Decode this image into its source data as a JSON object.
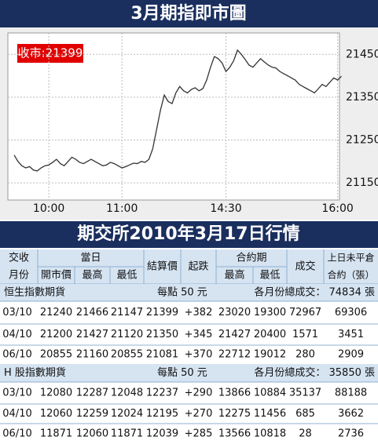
{
  "chart_data": {
    "type": "line",
    "title": "3月期指即市圖",
    "annotation": "收市:21399",
    "categories": [
      null,
      null,
      null,
      null,
      null,
      null,
      null,
      null,
      null,
      "10:00",
      null,
      null,
      null,
      null,
      null,
      null,
      null,
      null,
      null,
      null,
      null,
      null,
      null,
      null,
      null,
      null,
      null,
      null,
      "11:00",
      null,
      null,
      null,
      null,
      null,
      null,
      null,
      null,
      null,
      null,
      null,
      null,
      null,
      null,
      null,
      null,
      null,
      null,
      null,
      null,
      null,
      null,
      null,
      null,
      null,
      null,
      "14:30",
      null,
      null,
      null,
      null,
      null,
      null,
      null,
      null,
      null,
      null,
      null,
      null,
      null,
      null,
      null,
      null,
      null,
      null,
      null,
      null,
      null,
      null,
      null,
      null,
      null,
      null,
      null,
      null,
      "16:00",
      null
    ],
    "series": [
      {
        "name": "期指",
        "color": "#333333",
        "values": [
          21215,
          21200,
          21190,
          21185,
          21188,
          21180,
          21178,
          21185,
          21190,
          21192,
          21198,
          21205,
          21195,
          21190,
          21200,
          21210,
          21205,
          21198,
          21195,
          21200,
          21205,
          21200,
          21195,
          21190,
          21192,
          21198,
          21195,
          21190,
          21185,
          21188,
          21192,
          21196,
          21195,
          21200,
          21198,
          21205,
          21230,
          21275,
          21320,
          21355,
          21340,
          21335,
          21360,
          21375,
          21365,
          21360,
          21368,
          21372,
          21365,
          21370,
          21390,
          21420,
          21445,
          21440,
          21430,
          21410,
          21420,
          21435,
          21460,
          21450,
          21438,
          21425,
          21420,
          21430,
          21440,
          21432,
          21425,
          21420,
          21418,
          21410,
          21405,
          21400,
          21395,
          21390,
          21380,
          21375,
          21370,
          21365,
          21360,
          21370,
          21380,
          21375,
          21385,
          21395,
          21390,
          21399
        ]
      }
    ],
    "ylim": [
      21110,
      21500
    ],
    "yticks": [
      21150,
      21250,
      21350,
      21450
    ],
    "grid": true
  },
  "table": {
    "title": "期交所2010年3月17日行情",
    "header": {
      "month": [
        "交收",
        "月份"
      ],
      "day": "當日",
      "day_cols": [
        "開市價",
        "最高",
        "最低"
      ],
      "settle": "結算價",
      "change": "起跌",
      "contract": "合約期",
      "contract_cols": [
        "最高",
        "最低"
      ],
      "volume": "成交",
      "oi": [
        "上日未平倉",
        "合約（張）"
      ]
    },
    "sections": [
      {
        "name": "恒生指數期貨",
        "point": "每點 50 元",
        "total": "各月份總成交： 74834 張",
        "rows": [
          [
            "03/10",
            21240,
            21466,
            21147,
            21399,
            "+382",
            23020,
            19300,
            72967,
            69306
          ],
          [
            "04/10",
            21200,
            21427,
            21120,
            21350,
            "+345",
            21427,
            20400,
            1571,
            3451
          ],
          [
            "06/10",
            20855,
            21160,
            20855,
            21081,
            "+370",
            22712,
            19012,
            280,
            2909
          ]
        ]
      },
      {
        "name": "H 股指數期貨",
        "point": "每點 50 元",
        "total": "各月份總成交： 35850 張",
        "rows": [
          [
            "03/10",
            12080,
            12287,
            12048,
            12237,
            "+290",
            13866,
            10884,
            35137,
            88188
          ],
          [
            "04/10",
            12060,
            12259,
            12024,
            12195,
            "+270",
            12275,
            11456,
            685,
            3662
          ],
          [
            "06/10",
            11871,
            12060,
            11871,
            12039,
            "+285",
            13566,
            10818,
            28,
            2736
          ]
        ]
      }
    ]
  }
}
